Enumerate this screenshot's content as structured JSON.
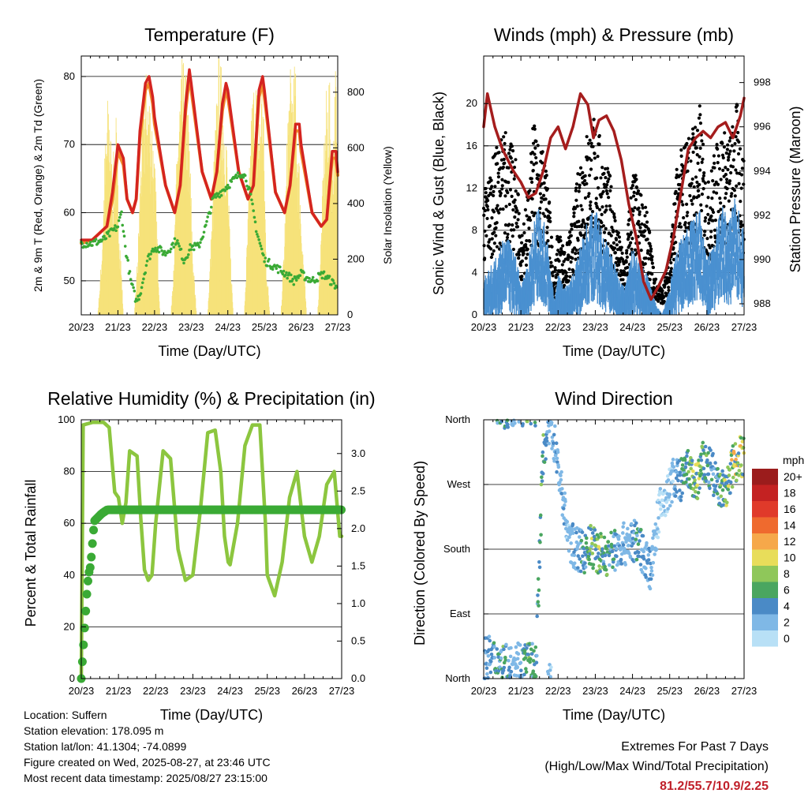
{
  "colors": {
    "temp_2m": "#d42420",
    "temp_9m": "#f08a2a",
    "dewpoint": "#3aaa35",
    "solar": "#f6e27a",
    "wind": "#4a90d0",
    "gust": "#000000",
    "pressure": "#a51d1d",
    "rh": "#8cc63f",
    "precip": "#3aaa35"
  },
  "shared": {
    "time_ticks": [
      "20/23",
      "21/23",
      "22/23",
      "23/23",
      "24/23",
      "25/23",
      "26/23",
      "27/23"
    ],
    "xlabel": "Time (Day/UTC)"
  },
  "chart_data": [
    {
      "id": "temperature",
      "type": "line",
      "title": "Temperature (F)",
      "xlabel": "Time (Day/UTC)",
      "ylabel": "2m & 9m T (Red, Orange) & 2m Td (Green)",
      "y2label": "Solar Insolation (Yellow)",
      "ylim": [
        45,
        83
      ],
      "y2lim": [
        0,
        930
      ],
      "yticks": [
        50,
        60,
        70,
        80
      ],
      "y2ticks": [
        0,
        200,
        400,
        600,
        800
      ],
      "x_days": [
        0,
        7
      ],
      "grid": "horizontal",
      "series": [
        {
          "name": "2m T",
          "color_key": "temp_2m",
          "x": [
            0,
            0.3,
            0.5,
            0.7,
            0.85,
            1.0,
            1.15,
            1.25,
            1.4,
            1.5,
            1.6,
            1.75,
            1.85,
            1.95,
            2.0,
            2.3,
            2.55,
            2.7,
            2.85,
            2.95,
            3.0,
            3.3,
            3.55,
            3.7,
            3.85,
            3.95,
            4.0,
            4.3,
            4.55,
            4.7,
            4.85,
            4.95,
            5.0,
            5.3,
            5.55,
            5.7,
            5.85,
            5.95,
            6.0,
            6.3,
            6.55,
            6.7,
            6.85,
            6.95,
            7.0
          ],
          "y": [
            56,
            56,
            57,
            58,
            63,
            70,
            68,
            62,
            60,
            62,
            72,
            79,
            80,
            77,
            74,
            64,
            60,
            64,
            76,
            81,
            79,
            66,
            62,
            66,
            76,
            79,
            78,
            66,
            62,
            64,
            78,
            80,
            78,
            63,
            60,
            64,
            73,
            73,
            70,
            60,
            58,
            59,
            69,
            69,
            66
          ]
        },
        {
          "name": "9m T",
          "color_key": "temp_9m",
          "x": [
            0,
            0.3,
            0.5,
            0.7,
            0.85,
            1.0,
            1.15,
            1.25,
            1.4,
            1.5,
            1.6,
            1.75,
            1.85,
            1.95,
            2.0,
            2.3,
            2.55,
            2.7,
            2.85,
            2.95,
            3.0,
            3.3,
            3.55,
            3.7,
            3.85,
            3.95,
            4.0,
            4.3,
            4.55,
            4.7,
            4.85,
            4.95,
            5.0,
            5.3,
            5.55,
            5.7,
            5.85,
            5.95,
            6.0,
            6.3,
            6.55,
            6.7,
            6.85,
            6.95,
            7.0
          ],
          "y": [
            55.5,
            56,
            57,
            58,
            62,
            69,
            67,
            62,
            60,
            62,
            71,
            78,
            79,
            76,
            73,
            64,
            60,
            64,
            75,
            80,
            78,
            66,
            62,
            66,
            75,
            78,
            77,
            66,
            62,
            64,
            77,
            79,
            77,
            63,
            60,
            64,
            72,
            72,
            69,
            60,
            58,
            59,
            68,
            68,
            65.5
          ]
        },
        {
          "name": "2m Td",
          "color_key": "dewpoint",
          "x": [
            0,
            0.3,
            0.6,
            0.8,
            1.0,
            1.1,
            1.2,
            1.35,
            1.5,
            1.6,
            1.8,
            2.0,
            2.3,
            2.6,
            2.8,
            3.0,
            3.2,
            3.4,
            3.6,
            3.8,
            4.0,
            4.2,
            4.4,
            4.5,
            4.6,
            4.8,
            5.0,
            5.3,
            5.6,
            5.8,
            6.0,
            6.3,
            6.6,
            6.8,
            7.0
          ],
          "y": [
            55.5,
            55.5,
            56,
            57,
            58,
            60,
            55,
            50,
            47,
            48,
            53,
            55,
            54,
            56,
            53,
            55,
            55,
            58,
            62,
            63,
            64,
            65,
            66,
            65,
            63,
            57,
            53,
            52,
            51,
            50,
            51,
            50,
            51,
            50,
            49
          ]
        },
        {
          "name": "Solar",
          "axis": "y2",
          "color_key": "solar",
          "x": [
            0.45,
            0.55,
            0.65,
            0.75,
            0.85,
            0.95,
            1.05,
            1.15,
            1.25,
            1.35,
            1.45,
            1.55,
            1.65,
            1.75,
            1.85,
            1.95,
            2.05,
            2.15,
            2.25,
            2.35,
            2.45,
            2.55,
            2.65,
            2.75,
            2.85,
            2.95,
            3.05,
            3.15,
            3.25,
            3.35,
            3.45,
            3.55,
            3.65,
            3.75,
            3.85,
            3.95,
            4.05,
            4.15,
            4.25,
            4.35,
            4.45,
            4.55,
            4.65,
            4.75,
            4.85,
            4.95,
            5.05,
            5.15,
            5.25,
            5.35,
            5.45,
            5.55,
            5.65,
            5.75,
            5.85,
            5.95,
            6.05,
            6.15,
            6.25,
            6.35,
            6.45,
            6.55,
            6.65,
            6.75,
            6.85,
            6.95,
            7.0
          ],
          "y": [
            0,
            200,
            600,
            820,
            500,
            700,
            300,
            0,
            0,
            0,
            0,
            250,
            700,
            850,
            820,
            700,
            400,
            0,
            0,
            0,
            0,
            300,
            750,
            880,
            860,
            650,
            200,
            0,
            0,
            0,
            0,
            300,
            650,
            900,
            850,
            700,
            300,
            0,
            0,
            0,
            0,
            350,
            750,
            880,
            700,
            900,
            200,
            0,
            0,
            0,
            0,
            300,
            800,
            880,
            850,
            550,
            250,
            0,
            0,
            0,
            0,
            300,
            700,
            880,
            600,
            900,
            400
          ]
        }
      ]
    },
    {
      "id": "winds",
      "type": "scatter",
      "title": "Winds (mph) & Pressure (mb)",
      "xlabel": "Time (Day/UTC)",
      "ylabel": "Sonic Wind & Gust (Blue, Black)",
      "y2label": "Station Pressure (Maroon)",
      "ylim": [
        0,
        24.5
      ],
      "y2lim": [
        987.5,
        999.2
      ],
      "yticks": [
        0,
        4,
        8,
        12,
        16,
        20
      ],
      "y2ticks": [
        988,
        990,
        992,
        994,
        996,
        998
      ],
      "x_days": [
        0,
        7
      ],
      "grid": "horizontal",
      "series": [
        {
          "name": "Sonic Wind",
          "color_key": "wind",
          "x": [
            0,
            0.3,
            0.6,
            0.9,
            1.0,
            1.2,
            1.35,
            1.5,
            1.7,
            1.9,
            2.0,
            2.2,
            2.4,
            2.6,
            2.8,
            3.0,
            3.2,
            3.4,
            3.6,
            3.8,
            4.0,
            4.2,
            4.4,
            4.6,
            4.8,
            5.0,
            5.2,
            5.4,
            5.6,
            5.8,
            6.0,
            6.2,
            6.4,
            6.6,
            6.8,
            7.0
          ],
          "y": [
            3,
            4,
            6,
            4,
            2,
            4,
            7,
            8,
            6,
            1,
            3,
            2,
            3,
            5,
            7,
            8,
            6,
            5,
            3,
            2,
            5,
            4,
            3,
            1,
            0,
            2,
            5,
            6,
            7,
            8,
            4,
            6,
            8,
            7,
            9,
            6
          ]
        },
        {
          "name": "Gust",
          "color_key": "gust",
          "x": [
            0,
            0.3,
            0.6,
            0.9,
            1.0,
            1.2,
            1.35,
            1.5,
            1.7,
            1.9,
            2.0,
            2.2,
            2.4,
            2.6,
            2.8,
            3.0,
            3.2,
            3.4,
            3.6,
            3.8,
            4.0,
            4.2,
            4.4,
            4.6,
            4.8,
            5.0,
            5.2,
            5.4,
            5.6,
            5.8,
            6.0,
            6.2,
            6.4,
            6.6,
            6.8,
            7.0
          ],
          "y": [
            10,
            13,
            15,
            12,
            6,
            10,
            16,
            14,
            12,
            3,
            7,
            5,
            8,
            13,
            15,
            16,
            13,
            11,
            7,
            4,
            12,
            10,
            8,
            3,
            2,
            5,
            12,
            14,
            15,
            17,
            10,
            13,
            15,
            14,
            17,
            12
          ]
        },
        {
          "name": "Pressure",
          "axis": "y2",
          "color_key": "pressure",
          "x": [
            0,
            0.1,
            0.3,
            0.5,
            0.8,
            1.0,
            1.2,
            1.4,
            1.6,
            1.8,
            2.0,
            2.2,
            2.4,
            2.6,
            2.8,
            2.95,
            3.1,
            3.3,
            3.5,
            3.7,
            3.9,
            4.1,
            4.3,
            4.5,
            4.7,
            4.9,
            5.1,
            5.3,
            5.5,
            5.7,
            5.9,
            6.1,
            6.3,
            6.5,
            6.7,
            6.9,
            7.0
          ],
          "y": [
            996,
            997.5,
            996,
            995,
            994,
            993.5,
            992.8,
            993,
            994,
            995.5,
            996,
            995,
            996,
            997.5,
            997,
            995.5,
            996.3,
            996.5,
            995.8,
            994.5,
            992.5,
            991,
            989,
            988.2,
            988.8,
            989.5,
            991,
            993,
            995,
            995.5,
            995.8,
            995.5,
            996,
            996.2,
            995.5,
            996.5,
            997.3
          ]
        }
      ]
    },
    {
      "id": "rh_precip",
      "type": "line",
      "title": "Relative Humidity (%) & Precipitation (in)",
      "xlabel": "Time (Day/UTC)",
      "ylabel": "Percent & Total Rainfall",
      "ylim": [
        0,
        100
      ],
      "y2lim": [
        0,
        3.45
      ],
      "yticks": [
        0,
        20,
        40,
        60,
        80,
        100
      ],
      "y2ticks": [
        "0.0",
        "0.5",
        "1.0",
        "1.5",
        "2.0",
        "2.5",
        "3.0"
      ],
      "x_days": [
        0,
        7
      ],
      "grid": "horizontal",
      "series": [
        {
          "name": "RH",
          "color_key": "rh",
          "x": [
            0,
            0.05,
            0.3,
            0.6,
            0.75,
            0.85,
            0.9,
            1.0,
            1.1,
            1.2,
            1.3,
            1.5,
            1.6,
            1.7,
            1.8,
            1.9,
            2.0,
            2.2,
            2.4,
            2.6,
            2.8,
            3.0,
            3.2,
            3.4,
            3.6,
            3.75,
            3.85,
            3.95,
            4.0,
            4.2,
            4.4,
            4.6,
            4.8,
            4.95,
            5.0,
            5.2,
            5.4,
            5.6,
            5.8,
            6.0,
            6.2,
            6.4,
            6.6,
            6.8,
            6.95,
            7.0
          ],
          "y": [
            0,
            98,
            99,
            99,
            97,
            80,
            72,
            70,
            60,
            68,
            88,
            86,
            62,
            42,
            38,
            40,
            60,
            88,
            85,
            50,
            38,
            40,
            65,
            95,
            96,
            80,
            55,
            45,
            44,
            60,
            90,
            98,
            98,
            60,
            40,
            32,
            45,
            70,
            80,
            55,
            45,
            55,
            75,
            80,
            55,
            55
          ]
        },
        {
          "name": "Total Rainfall",
          "axis": "y2",
          "color_key": "precip",
          "x": [
            0,
            0.04,
            0.08,
            0.12,
            0.16,
            0.2,
            0.25,
            0.3,
            0.35,
            0.45,
            0.55,
            0.7,
            0.85,
            1.0,
            1.5,
            2.0,
            3.0,
            4.0,
            5.0,
            6.0,
            7.0
          ],
          "y": [
            0,
            0.3,
            0.6,
            0.9,
            1.2,
            1.4,
            1.5,
            1.8,
            2.1,
            2.15,
            2.2,
            2.25,
            2.25,
            2.25,
            2.25,
            2.25,
            2.25,
            2.25,
            2.25,
            2.25,
            2.25
          ]
        }
      ]
    },
    {
      "id": "wind_direction",
      "type": "scatter",
      "title": "Wind Direction",
      "xlabel": "Time (Day/UTC)",
      "ylabel": "Direction (Colored By Speed)",
      "ylim": [
        0,
        360
      ],
      "yticks": [
        "North",
        "East",
        "South",
        "West",
        "North"
      ],
      "x_days": [
        0,
        7
      ],
      "grid": "horizontal",
      "legend": {
        "title": "mph",
        "labels": [
          "20+",
          "18",
          "16",
          "14",
          "12",
          "10",
          "8",
          "6",
          "4",
          "2",
          "0"
        ],
        "colors": [
          "#9b1c1c",
          "#c42222",
          "#e03a2a",
          "#ef6a2e",
          "#f6a84a",
          "#e8dd5a",
          "#8fc75a",
          "#4aa660",
          "#4a8ac6",
          "#7fb8e6",
          "#b8e0f6"
        ]
      },
      "series": [
        {
          "name": "direction",
          "x": [
            0.1,
            0.3,
            0.5,
            0.7,
            0.9,
            1.0,
            1.2,
            1.4,
            1.6,
            1.8,
            1.9,
            2.3,
            2.5,
            2.7,
            2.9,
            3.1,
            3.3,
            3.5,
            3.7,
            3.9,
            4.1,
            4.3,
            4.5,
            4.7,
            4.9,
            5.1,
            5.3,
            5.5,
            5.7,
            5.9,
            6.1,
            6.3,
            6.5,
            6.7,
            6.9
          ],
          "y": [
            30,
            25,
            20,
            15,
            30,
            20,
            25,
            15,
            320,
            355,
            330,
            190,
            180,
            175,
            185,
            175,
            170,
            180,
            185,
            190,
            190,
            175,
            150,
            230,
            250,
            280,
            275,
            290,
            270,
            300,
            290,
            270,
            255,
            300,
            310
          ],
          "speed": [
            3,
            4,
            6,
            4,
            2,
            3,
            7,
            5,
            6,
            2,
            3,
            2,
            3,
            5,
            7,
            8,
            6,
            5,
            3,
            2,
            5,
            4,
            3,
            1,
            1,
            2,
            5,
            6,
            8,
            7,
            4,
            6,
            8,
            10,
            9
          ]
        }
      ]
    }
  ],
  "station": {
    "location": "Location: Suffern",
    "elevation": "Station elevation: 178.095 m",
    "latlon": "Station lat/lon: 41.1304; -74.0899",
    "created": "Figure created on Wed, 2025-08-27, at 23:46 UTC",
    "recent": "Most recent data timestamp: 2025/08/27 23:15:00"
  },
  "extremes": {
    "title": "Extremes For Past 7 Days",
    "subtitle": "(High/Low/Max Wind/Total Precipitation)",
    "values": "81.2/55.7/10.9/2.25"
  }
}
